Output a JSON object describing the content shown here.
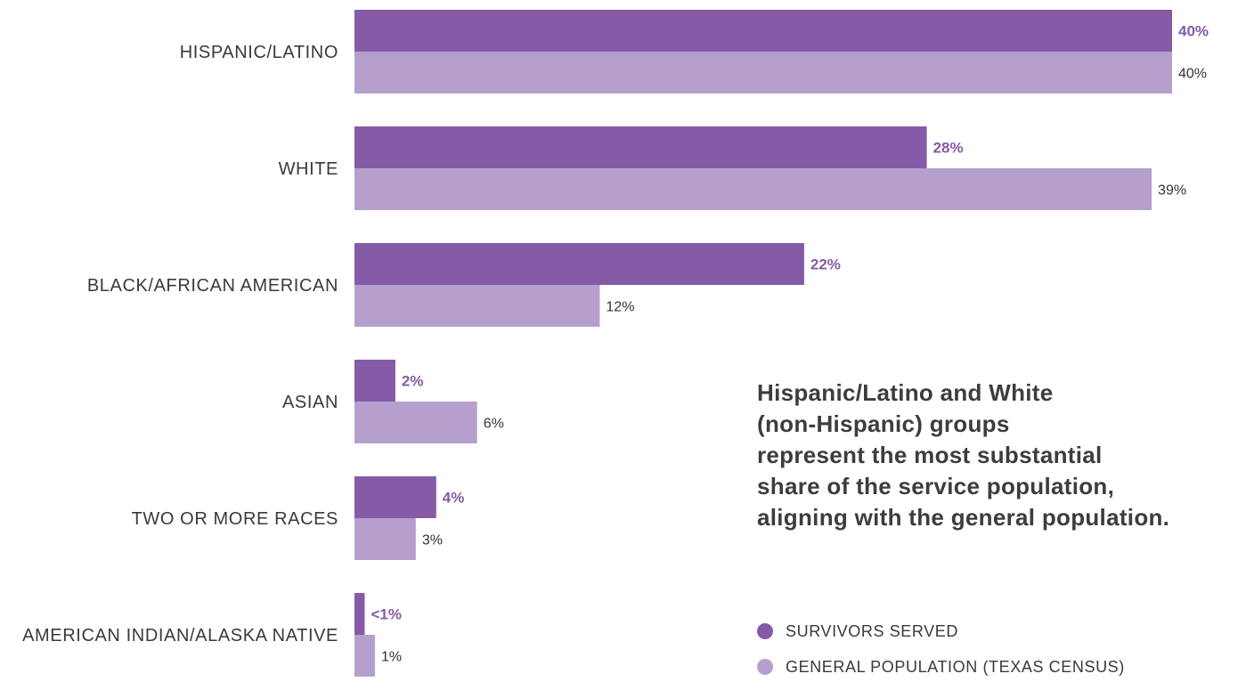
{
  "chart_data": {
    "type": "bar",
    "orientation": "horizontal",
    "categories": [
      "HISPANIC/LATINO",
      "WHITE",
      "BLACK/AFRICAN AMERICAN",
      "ASIAN",
      "TWO OR MORE RACES",
      "AMERICAN INDIAN/ALASKA NATIVE"
    ],
    "series": [
      {
        "name": "SURVIVORS SERVED",
        "color": "#855ba8",
        "values": [
          40,
          28,
          22,
          2,
          4,
          0.5
        ],
        "labels": [
          "40%",
          "28%",
          "22%",
          "2%",
          "4%",
          "<1%"
        ]
      },
      {
        "name": "GENERAL POPULATION (TEXAS CENSUS)",
        "color": "#b5a0cd",
        "values": [
          40,
          39,
          12,
          6,
          3,
          1
        ],
        "labels": [
          "40%",
          "39%",
          "12%",
          "6%",
          "3%",
          "1%"
        ]
      }
    ],
    "xlim": [
      0,
      40
    ],
    "grid": false,
    "legend_position": "bottom-right"
  },
  "callout": {
    "lines": [
      "Hispanic/Latino and White",
      "(non-Hispanic) groups",
      "represent the most substantial",
      "share of the service population,",
      "aligning with the general population."
    ]
  },
  "legend": {
    "items": [
      {
        "label": "SURVIVORS SERVED",
        "color": "#855ba8"
      },
      {
        "label": "GENERAL POPULATION (TEXAS CENSUS)",
        "color": "#b5a0cd"
      }
    ]
  }
}
